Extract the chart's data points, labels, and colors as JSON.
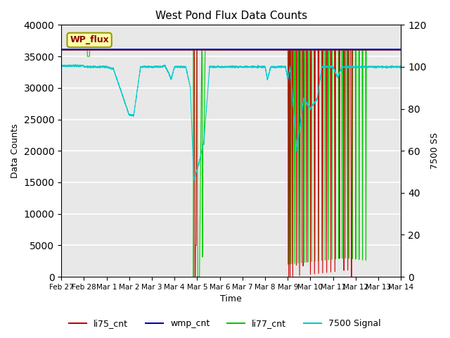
{
  "title": "West Pond Flux Data Counts",
  "xlabel": "Time",
  "ylabel_left": "Data Counts",
  "ylabel_right": "7500 SS",
  "ylim_left": [
    0,
    40000
  ],
  "ylim_right": [
    0,
    120
  ],
  "x_tick_labels": [
    "Feb 27",
    "Feb 28",
    "Mar 1",
    "Mar 2",
    "Mar 3",
    "Mar 4",
    "Mar 5",
    "Mar 6",
    "Mar 7",
    "Mar 8",
    "Mar 9",
    "Mar 10",
    "Mar 11",
    "Mar 12",
    "Mar 13",
    "Mar 14"
  ],
  "annotation_text": "WP_flux",
  "bg_color": "#e8e8e8",
  "li75_color": "#cc0000",
  "wmp_color": "#0000cc",
  "li77_color": "#00cc00",
  "signal_color": "#00cccc",
  "grid_color": "#ffffff",
  "fig_bg": "#ffffff"
}
